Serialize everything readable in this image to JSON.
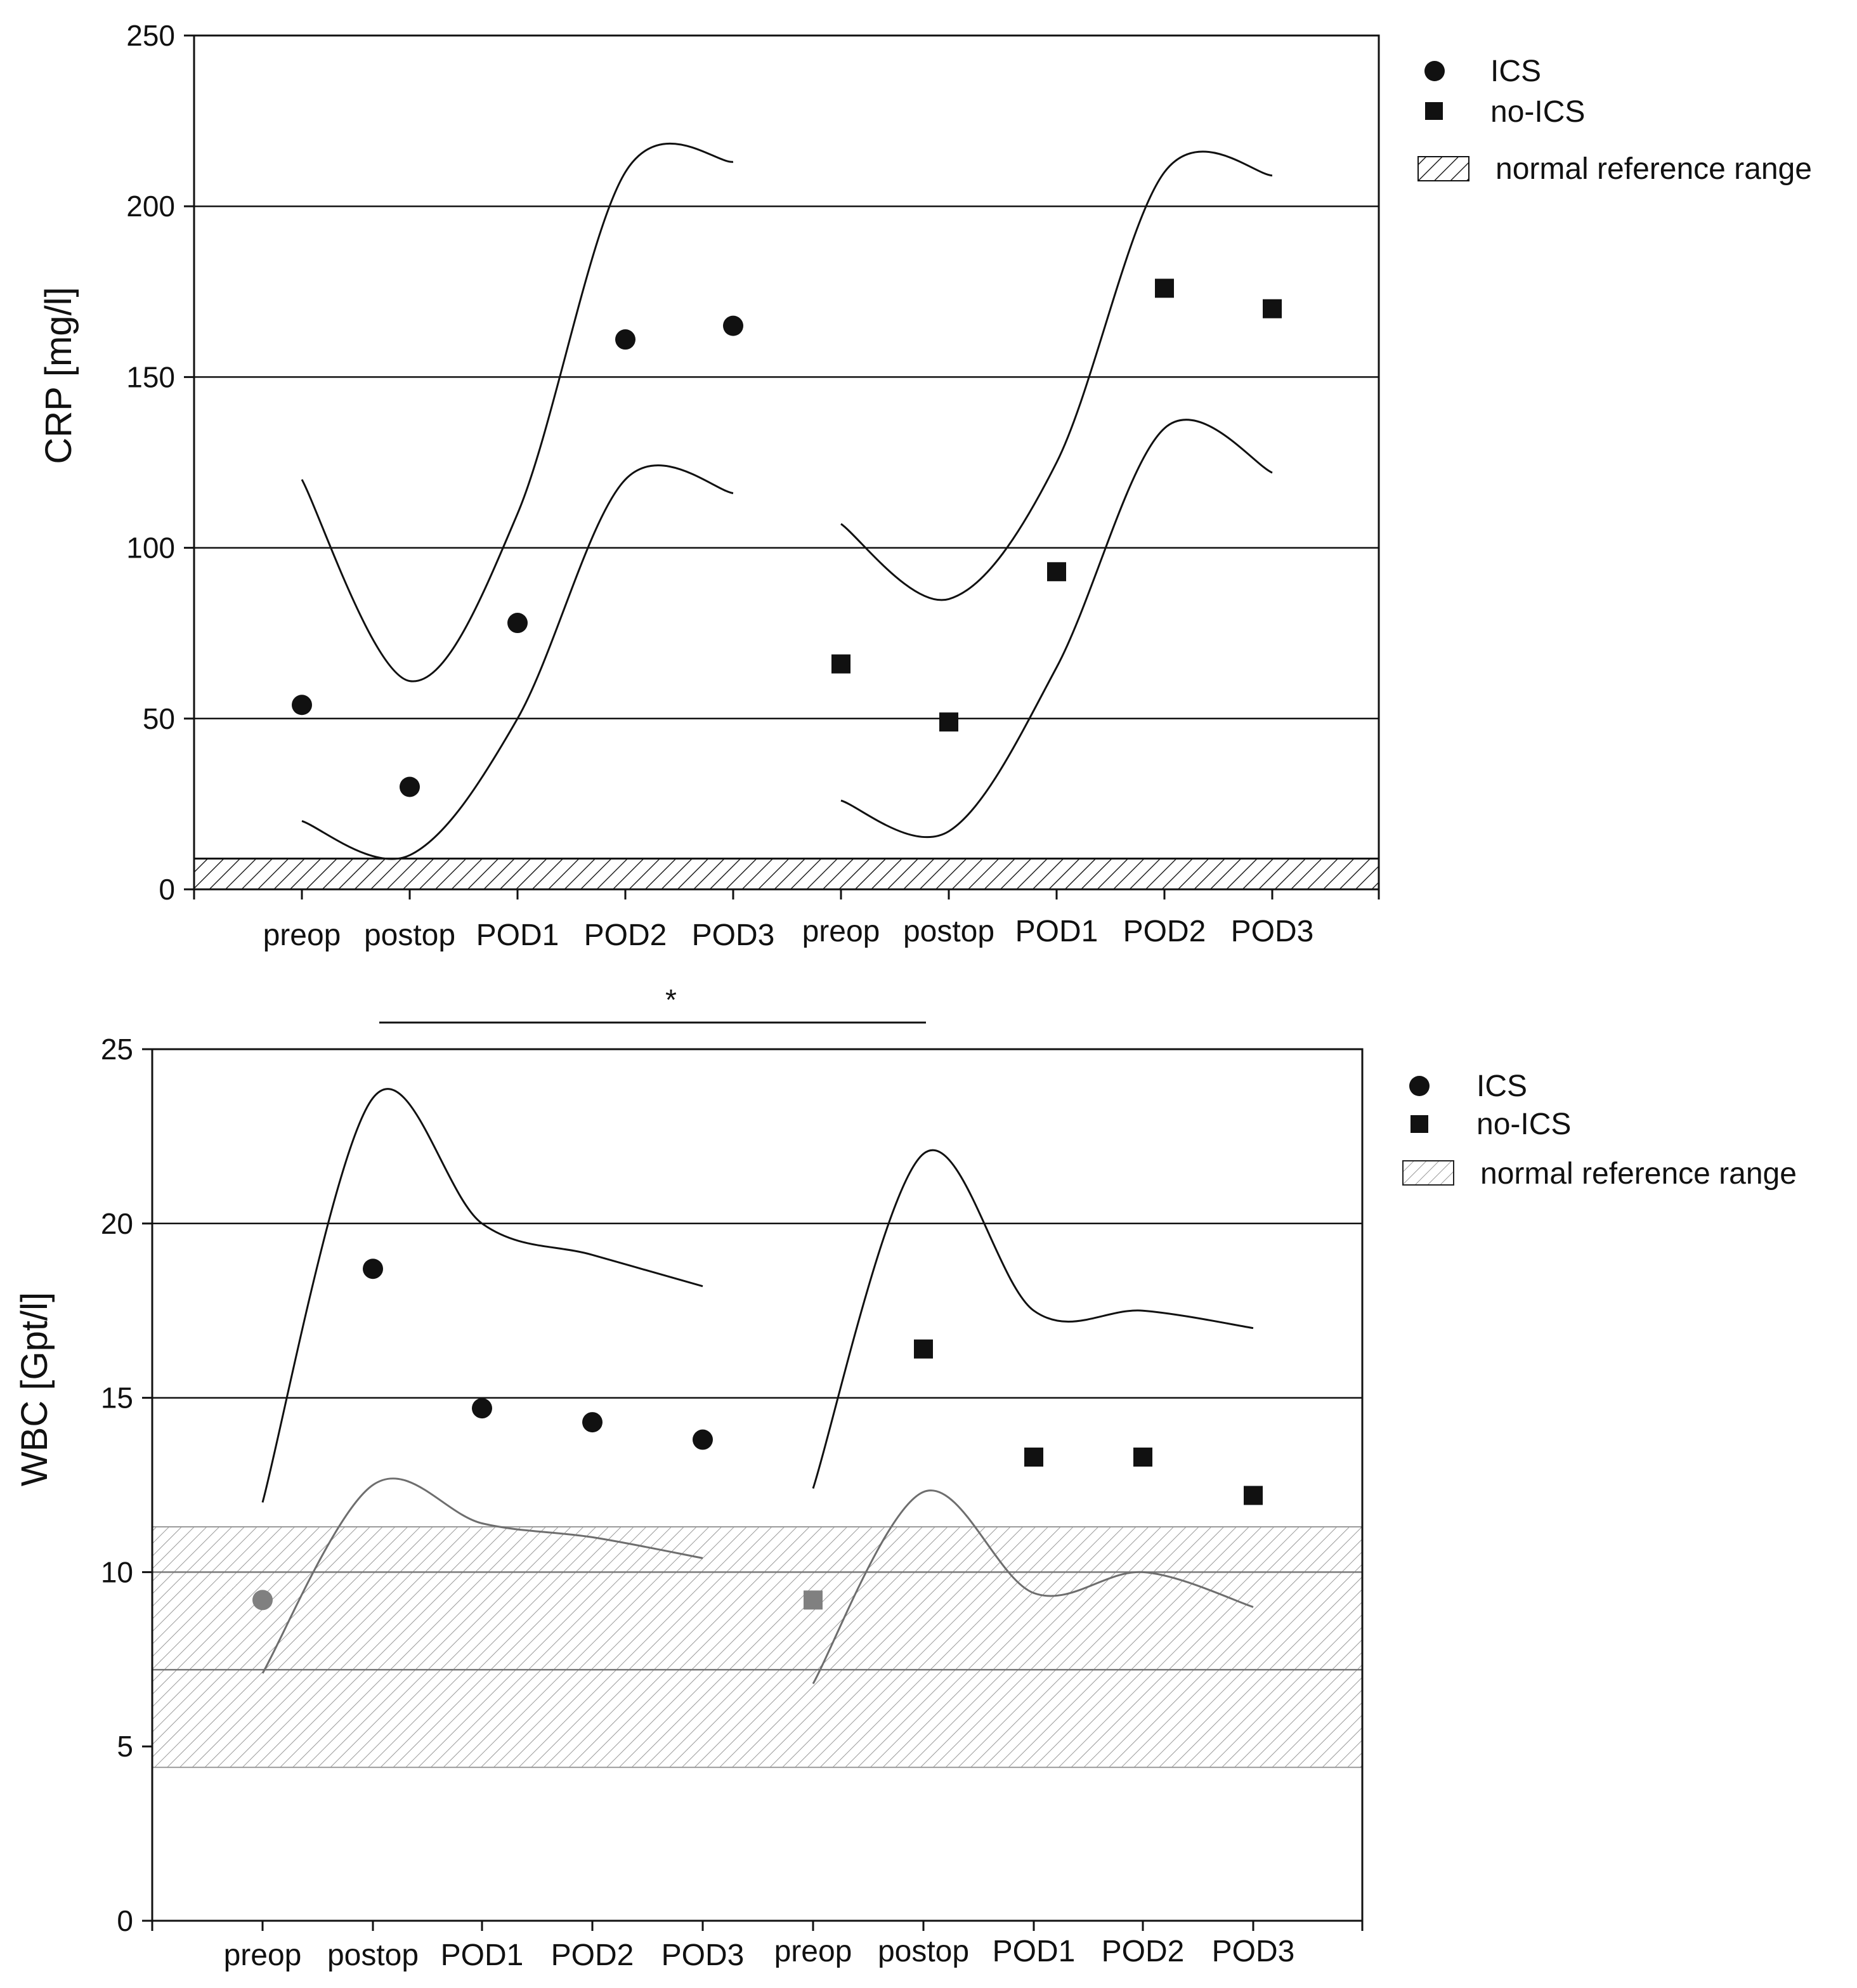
{
  "colors": {
    "axis": "#111111",
    "marker": "#111111",
    "marker_in_range": "#808080",
    "hatch": "#9a9a9a",
    "hatch_dark": "#222222"
  },
  "chart_data": [
    {
      "type": "scatter",
      "ylabel": "CRP [mg/l]",
      "ylim": [
        0,
        250
      ],
      "yticks": [
        0,
        50,
        100,
        150,
        200,
        250
      ],
      "grid": "horizontal at 50, 100, 150, 200",
      "legend_position": "right",
      "legend": [
        "ICS",
        "no-ICS",
        "normal reference range"
      ],
      "reference_range": [
        0,
        9
      ],
      "groups": [
        {
          "name": "ICS",
          "marker": "circle",
          "categories": [
            "preop",
            "postop",
            "POD1",
            "POD2",
            "POD3"
          ],
          "values": [
            54,
            30,
            78,
            161,
            165
          ],
          "upper_band": [
            120,
            61,
            110,
            210,
            213
          ],
          "lower_band": [
            20,
            10,
            50,
            120,
            116
          ]
        },
        {
          "name": "no-ICS",
          "marker": "square",
          "categories": [
            "preop",
            "postop",
            "POD1",
            "POD2",
            "POD3"
          ],
          "values": [
            66,
            49,
            93,
            176,
            170
          ],
          "upper_band": [
            107,
            85,
            125,
            210,
            209
          ],
          "lower_band": [
            26,
            17,
            65,
            135,
            122
          ]
        }
      ],
      "annotation": "*"
    },
    {
      "type": "scatter",
      "ylabel": "WBC [Gpt/l]",
      "ylim": [
        0,
        25
      ],
      "yticks": [
        0,
        5,
        10,
        15,
        20,
        25
      ],
      "grid": "horizontal at 7.2, 10, 15, 20",
      "legend_position": "right",
      "legend": [
        "ICS",
        "no-ICS",
        "normal reference range"
      ],
      "reference_range": [
        4.4,
        11.3
      ],
      "groups": [
        {
          "name": "ICS",
          "marker": "circle",
          "categories": [
            "preop",
            "postop",
            "POD1",
            "POD2",
            "POD3"
          ],
          "values": [
            9.2,
            18.7,
            14.7,
            14.3,
            13.8
          ],
          "upper_band": [
            12,
            23.6,
            20,
            19.1,
            18.2
          ],
          "lower_band": [
            7.1,
            12.5,
            11.4,
            11.0,
            10.4
          ]
        },
        {
          "name": "no-ICS",
          "marker": "square",
          "categories": [
            "preop",
            "postop",
            "POD1",
            "POD2",
            "POD3"
          ],
          "values": [
            9.2,
            16.4,
            13.3,
            13.3,
            12.2
          ],
          "upper_band": [
            12.4,
            22.0,
            17.5,
            17.5,
            17.0
          ],
          "lower_band": [
            6.8,
            12.3,
            9.4,
            10.0,
            9.0
          ]
        }
      ]
    }
  ]
}
